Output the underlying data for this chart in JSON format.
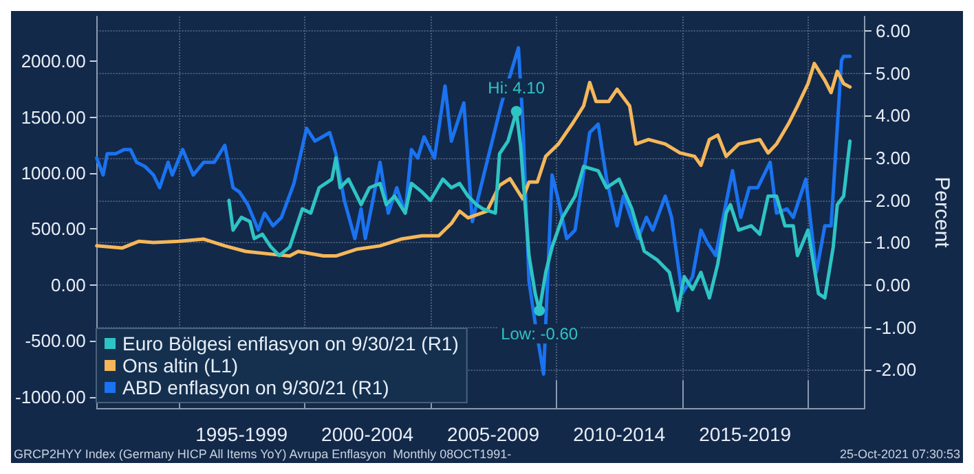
{
  "chart_data": {
    "type": "line",
    "y2label": "Percent",
    "xlim": [
      "1991-10",
      "2022-04"
    ],
    "xticks": [
      {
        "value": "1995-01",
        "label": null
      },
      {
        "value": "2000-01",
        "label": null
      },
      {
        "value": "2005-01",
        "label": null
      },
      {
        "value": "2010-01",
        "label": null
      },
      {
        "value": "2015-01",
        "label": null
      },
      {
        "value": "2020-01",
        "label": null
      },
      {
        "value": "1997-07",
        "label": "1995-1999"
      },
      {
        "value": "2002-07",
        "label": "2000-2004"
      },
      {
        "value": "2007-07",
        "label": "2005-2009"
      },
      {
        "value": "2012-07",
        "label": "2010-2014"
      },
      {
        "value": "2017-07",
        "label": "2015-2019"
      }
    ],
    "ylim": [
      -1100,
      2400
    ],
    "yticks": [
      {
        "value": -1000,
        "label": "-1000.00"
      },
      {
        "value": -500,
        "label": "-500.00"
      },
      {
        "value": 0,
        "label": "0.00"
      },
      {
        "value": 500,
        "label": "500.00"
      },
      {
        "value": 1000,
        "label": "1000.00"
      },
      {
        "value": 1500,
        "label": "1500.00"
      },
      {
        "value": 2000,
        "label": "2000.00"
      }
    ],
    "y2lim": [
      -2.9,
      6.34
    ],
    "y2ticks": [
      {
        "value": -2,
        "label": "-2.00"
      },
      {
        "value": -1,
        "label": "-1.00"
      },
      {
        "value": 0,
        "label": "0.00"
      },
      {
        "value": 1,
        "label": "1.00"
      },
      {
        "value": 2,
        "label": "2.00"
      },
      {
        "value": 3,
        "label": "3.00"
      },
      {
        "value": 4,
        "label": "4.00"
      },
      {
        "value": 5,
        "label": "5.00"
      },
      {
        "value": 6,
        "label": "6.00"
      }
    ],
    "grid": true,
    "legend": "bottom left",
    "marker": "none",
    "line_style": "solid",
    "series": [
      {
        "name": "Euro Bölgesi enflasyon on 9/30/21 (R1)",
        "color": "#2ec4c4",
        "axis": "y2",
        "x": [
          "1997-01",
          "1997-03",
          "1997-07",
          "1997-11",
          "1998-01",
          "1998-05",
          "1998-09",
          "1999-01",
          "1999-06",
          "1999-12",
          "2000-04",
          "2000-08",
          "2001-02",
          "2001-04",
          "2001-06",
          "2001-10",
          "2002-02",
          "2002-04",
          "2002-08",
          "2003-01",
          "2003-04",
          "2003-08",
          "2004-01",
          "2004-04",
          "2004-09",
          "2005-01",
          "2005-07",
          "2005-11",
          "2006-03",
          "2006-07",
          "2006-11",
          "2007-02",
          "2007-08",
          "2007-10",
          "2008-02",
          "2008-06",
          "2008-08",
          "2008-12",
          "2009-03",
          "2009-05",
          "2009-08",
          "2009-11",
          "2010-04",
          "2010-10",
          "2011-02",
          "2011-09",
          "2012-01",
          "2012-07",
          "2013-01",
          "2013-07",
          "2014-01",
          "2014-07",
          "2014-11",
          "2015-02",
          "2015-06",
          "2015-10",
          "2016-02",
          "2016-06",
          "2016-10",
          "2016-12",
          "2017-04",
          "2017-10",
          "2018-02",
          "2018-06",
          "2018-10",
          "2019-02",
          "2019-06",
          "2019-08",
          "2020-01",
          "2020-06",
          "2020-09",
          "2021-01",
          "2021-03",
          "2021-06",
          "2021-09"
        ],
        "values": [
          2.0,
          1.3,
          1.6,
          1.5,
          1.1,
          1.2,
          0.9,
          0.7,
          0.9,
          1.8,
          1.7,
          2.3,
          2.5,
          3.0,
          2.3,
          2.5,
          2.1,
          1.9,
          2.3,
          2.4,
          1.9,
          2.1,
          1.7,
          2.4,
          2.2,
          2.0,
          2.5,
          2.3,
          2.4,
          2.1,
          1.9,
          1.8,
          1.7,
          3.1,
          3.4,
          4.1,
          3.3,
          0.7,
          -0.2,
          -0.6,
          0.3,
          0.9,
          1.6,
          2.1,
          2.8,
          2.7,
          2.3,
          2.5,
          1.8,
          0.8,
          0.6,
          0.3,
          -0.6,
          0.2,
          -0.1,
          0.3,
          -0.3,
          0.5,
          1.7,
          1.9,
          1.3,
          1.4,
          1.2,
          2.1,
          2.1,
          1.4,
          1.4,
          0.7,
          1.3,
          -0.2,
          -0.3,
          0.9,
          1.9,
          2.1,
          3.4
        ]
      },
      {
        "name": "Ons altin (L1)",
        "color": "#f5b75a",
        "x": [
          "1991-10",
          "1992-10",
          "1993-06",
          "1994-01",
          "1995-01",
          "1996-01",
          "1996-11",
          "1997-09",
          "1998-12",
          "1999-06",
          "1999-10",
          "2000-10",
          "2001-04",
          "2002-02",
          "2003-01",
          "2003-11",
          "2004-09",
          "2005-05",
          "2005-11",
          "2006-03",
          "2006-07",
          "2007-04",
          "2007-10",
          "2008-03",
          "2008-09",
          "2008-12",
          "2009-04",
          "2009-08",
          "2010-02",
          "2010-09",
          "2011-02",
          "2011-05",
          "2011-08",
          "2012-02",
          "2012-06",
          "2012-12",
          "2013-03",
          "2013-09",
          "2014-05",
          "2014-12",
          "2015-07",
          "2015-10",
          "2016-02",
          "2016-06",
          "2016-10",
          "2017-04",
          "2018-02",
          "2018-06",
          "2018-10",
          "2019-04",
          "2019-08",
          "2020-01",
          "2020-04",
          "2020-09",
          "2020-12",
          "2021-03",
          "2021-06",
          "2021-09"
        ],
        "values": [
          350,
          330,
          390,
          380,
          390,
          410,
          350,
          300,
          270,
          260,
          300,
          260,
          260,
          320,
          350,
          410,
          440,
          440,
          550,
          660,
          600,
          660,
          890,
          950,
          770,
          920,
          920,
          1150,
          1260,
          1450,
          1600,
          1810,
          1640,
          1640,
          1750,
          1600,
          1260,
          1300,
          1260,
          1180,
          1150,
          1070,
          1300,
          1340,
          1150,
          1260,
          1300,
          1180,
          1260,
          1450,
          1600,
          1800,
          1980,
          1830,
          1720,
          1910,
          1800,
          1770
        ]
      },
      {
        "name": "ABD enflasyon on 9/30/21 (R1)",
        "color": "#1a73f0",
        "axis": "y2",
        "x": [
          "1991-10",
          "1992-01",
          "1992-03",
          "1992-07",
          "1992-11",
          "1993-02",
          "1993-05",
          "1993-09",
          "1994-01",
          "1994-04",
          "1994-08",
          "1994-10",
          "1995-03",
          "1995-08",
          "1996-01",
          "1996-06",
          "1996-11",
          "1997-03",
          "1997-06",
          "1997-10",
          "1998-03",
          "1998-06",
          "1998-10",
          "1999-02",
          "1999-08",
          "2000-02",
          "2000-06",
          "2001-01",
          "2001-04",
          "2001-08",
          "2002-01",
          "2002-04",
          "2002-06",
          "2002-10",
          "2003-01",
          "2003-05",
          "2003-09",
          "2004-01",
          "2004-04",
          "2004-07",
          "2004-10",
          "2005-03",
          "2005-08",
          "2005-11",
          "2006-05",
          "2006-09",
          "2007-03",
          "2007-11",
          "2008-07",
          "2008-09",
          "2008-12",
          "2009-03",
          "2009-07",
          "2009-11",
          "2010-02",
          "2010-06",
          "2010-10",
          "2011-05",
          "2011-09",
          "2012-01",
          "2012-06",
          "2012-09",
          "2013-04",
          "2013-08",
          "2013-11",
          "2014-05",
          "2014-08",
          "2015-01",
          "2015-06",
          "2015-10",
          "2016-01",
          "2016-05",
          "2017-01",
          "2017-05",
          "2017-09",
          "2018-01",
          "2018-07",
          "2018-10",
          "2019-03",
          "2019-06",
          "2019-12",
          "2020-05",
          "2020-09",
          "2020-12",
          "2021-05",
          "2021-06",
          "2021-09"
        ],
        "values": [
          3.0,
          2.6,
          3.1,
          3.1,
          3.2,
          3.2,
          2.9,
          2.8,
          2.6,
          2.3,
          2.9,
          2.6,
          3.2,
          2.6,
          2.9,
          2.9,
          3.3,
          2.3,
          2.2,
          1.9,
          1.3,
          1.7,
          1.4,
          1.6,
          2.4,
          3.7,
          3.4,
          3.6,
          3.1,
          2.0,
          1.1,
          1.8,
          1.1,
          2.1,
          2.9,
          1.7,
          2.3,
          1.7,
          3.2,
          3.0,
          3.5,
          3.0,
          4.7,
          3.4,
          4.3,
          1.5,
          2.7,
          4.3,
          5.6,
          3.9,
          0.1,
          -0.9,
          -2.1,
          2.6,
          2.0,
          1.1,
          1.3,
          3.6,
          3.8,
          2.5,
          1.4,
          2.1,
          1.1,
          1.6,
          1.3,
          2.1,
          1.6,
          -0.2,
          0.2,
          1.3,
          1.0,
          0.7,
          2.7,
          1.6,
          2.3,
          2.3,
          2.9,
          1.7,
          1.8,
          1.6,
          2.5,
          0.3,
          1.4,
          1.4,
          5.3,
          5.4,
          5.4
        ]
      }
    ],
    "annotations": [
      "Hi: 4.10",
      {
        "text": "Low: -0.60",
        "x": "2009-05",
        "y": -0.6
      },
      "GRCP2HYY Index (Germany HICP All Items YoY) Avrupa Enflasyon  Monthly 08OCT1991-",
      "25-Oct-2021 07:30:53"
    ]
  }
}
